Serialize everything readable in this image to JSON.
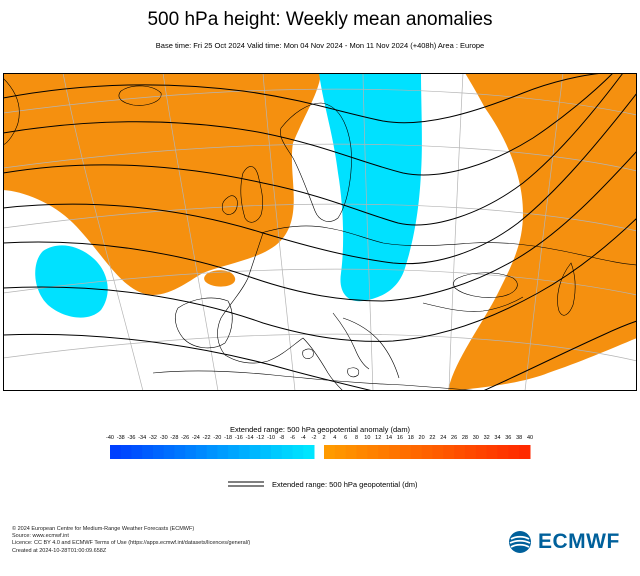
{
  "title": "500 hPa height: Weekly mean anomalies",
  "subtitle": "Base time: Fri 25 Oct 2024 Valid time: Mon 04 Nov 2024 - Mon 11 Nov 2024 (+408h) Area : Europe",
  "legend": {
    "title": "Extended range: 500 hPa geopotential anomaly (dam)",
    "negative_ticks": [
      "-40",
      "-38",
      "-36",
      "-34",
      "-32",
      "-30",
      "-28",
      "-26",
      "-24",
      "-22",
      "-20",
      "-18",
      "-16",
      "-14",
      "-12",
      "-10",
      "-8",
      "-6",
      "-4",
      "-2"
    ],
    "positive_ticks": [
      "2",
      "4",
      "6",
      "8",
      "10",
      "12",
      "14",
      "16",
      "18",
      "20",
      "22",
      "24",
      "26",
      "28",
      "30",
      "32",
      "34",
      "36",
      "38",
      "40"
    ],
    "negative_color_start": "#0040ff",
    "negative_color_end": "#00e5ff",
    "positive_color_start": "#ff9a00",
    "positive_color_end": "#ff2a00"
  },
  "contour_legend": {
    "label": "Extended range: 500 hPa geopotential (dm)"
  },
  "map_colors": {
    "positive_anomaly": "#f5900f",
    "negative_anomaly": "#00e1ff",
    "contours": "#000000",
    "coastlines": "#000000",
    "graticule": "#b4b4b4"
  },
  "footer": {
    "line1": "© 2024 European Centre for Medium-Range Weather Forecasts (ECMWF)",
    "line2": "Source: www.ecmwf.int",
    "line3": "Licence: CC BY 4.0 and ECMWF Terms of Use (https://apps.ecmwf.int/datasets/licences/general/)",
    "line4": "Created at 2024-10-28T01:00:09.658Z"
  },
  "logo": {
    "text": "ECMWF",
    "color": "#00609b"
  }
}
